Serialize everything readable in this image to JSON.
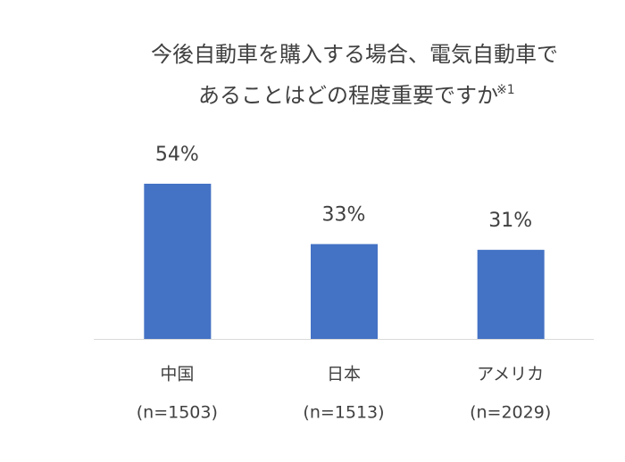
{
  "chart_data": {
    "type": "bar",
    "title_lines": [
      "今後自動車を購入する場合、電気自動車で",
      "あることはどの程度重要ですか"
    ],
    "title_footnote": "※1",
    "categories": [
      "中国",
      "日本",
      "アメリカ"
    ],
    "sample_sizes": [
      "(n=1503)",
      "(n=1513)",
      "(n=2029)"
    ],
    "values": [
      54,
      33,
      31
    ],
    "value_labels": [
      "54%",
      "33%",
      "31%"
    ],
    "color": "#4472c4"
  }
}
